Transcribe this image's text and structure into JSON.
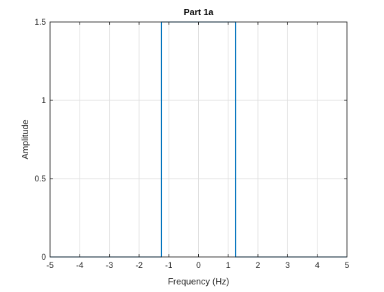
{
  "chart_data": {
    "type": "line",
    "title": "Part 1a",
    "xlabel": "Frequency (Hz)",
    "ylabel": "Amplitude",
    "xlim": [
      -5,
      5
    ],
    "ylim": [
      0,
      1.5
    ],
    "xticks": [
      -5,
      -4,
      -3,
      -2,
      -1,
      0,
      1,
      2,
      3,
      4,
      5
    ],
    "yticks": [
      0,
      0.5,
      1,
      1.5
    ],
    "xtick_labels": [
      "-5",
      "-4",
      "-3",
      "-2",
      "-1",
      "0",
      "1",
      "2",
      "3",
      "4",
      "5"
    ],
    "ytick_labels": [
      "0",
      "0.5",
      "1",
      "1.5"
    ],
    "grid": true,
    "series": [
      {
        "color": "#0072BD",
        "x": [
          -5,
          -1.25,
          -1.25,
          1.25,
          1.25,
          5
        ],
        "y": [
          0,
          0,
          1.5,
          1.5,
          0,
          0
        ]
      }
    ]
  }
}
